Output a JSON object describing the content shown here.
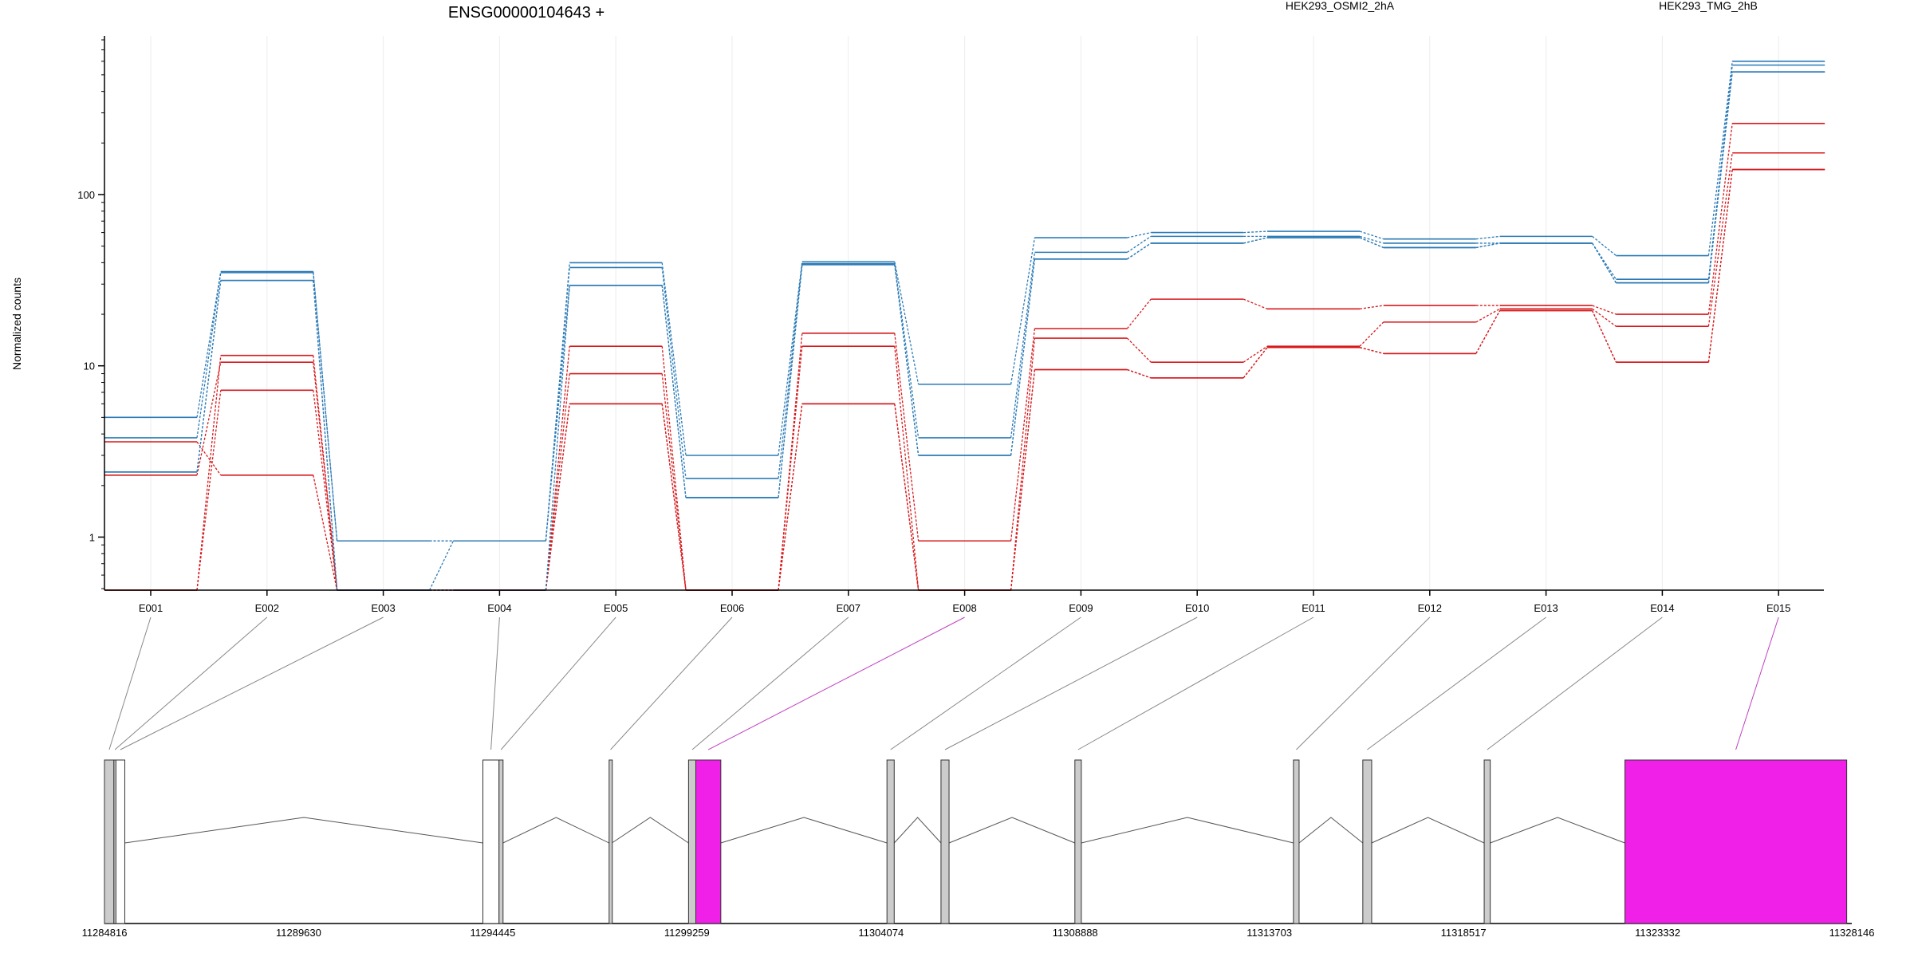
{
  "chart_data": {
    "type": "line",
    "title": "ENSG00000104643 +",
    "ylabel": "Normalized counts",
    "xlabel": "",
    "yscale": "log",
    "ylim": [
      0.49,
      800
    ],
    "yticks": [
      1,
      10,
      100
    ],
    "ytick_labels": [
      "1",
      "10",
      "100"
    ],
    "categories": [
      "E001",
      "E002",
      "E003",
      "E004",
      "E005",
      "E006",
      "E007",
      "E008",
      "E009",
      "E010",
      "E011",
      "E012",
      "E013",
      "E014",
      "E015"
    ],
    "legend": [
      {
        "label": "HEK293_OSMI2_2hA",
        "color": "#d7191c"
      },
      {
        "label": "HEK293_TMG_2hB",
        "color": "#2c7bb6"
      }
    ],
    "series": [
      {
        "group": 0,
        "color": "#d7191c",
        "values": [
          3.6,
          2.3,
          0.49,
          0.49,
          13,
          0.49,
          15.5,
          0.95,
          16.5,
          24.5,
          21.5,
          22.5,
          22.5,
          20,
          260
        ]
      },
      {
        "group": 0,
        "color": "#d7191c",
        "values": [
          2.3,
          10.5,
          0.49,
          0.49,
          9,
          0.49,
          13,
          0.49,
          14.5,
          10.5,
          13,
          18,
          21.5,
          17,
          175
        ]
      },
      {
        "group": 0,
        "color": "#d7191c",
        "values": [
          0.49,
          7.2,
          0.49,
          0.49,
          6,
          0.49,
          6,
          0.49,
          9.5,
          8.5,
          12.8,
          11.8,
          21,
          10.5,
          140
        ]
      },
      {
        "group": 0,
        "color": "#d7191c",
        "values": [
          0.49,
          11.5,
          0.49,
          0.49,
          6,
          0.49,
          6,
          0.49,
          9.5,
          8.5,
          12.8,
          11.8,
          21,
          10.5,
          140
        ]
      },
      {
        "group": 1,
        "color": "#2c7bb6",
        "values": [
          5.0,
          35.5,
          0.95,
          0.95,
          40,
          3.0,
          40.5,
          7.8,
          56,
          60,
          61,
          55,
          57,
          44,
          600
        ]
      },
      {
        "group": 1,
        "color": "#2c7bb6",
        "values": [
          3.8,
          35,
          0.95,
          0.95,
          37.5,
          2.2,
          39.5,
          3.8,
          46,
          57,
          57,
          52,
          52,
          32,
          570
        ]
      },
      {
        "group": 1,
        "color": "#2c7bb6",
        "values": [
          2.4,
          31.5,
          0.49,
          0.95,
          29.5,
          1.7,
          39,
          3.0,
          42,
          52,
          56,
          49,
          52,
          30.5,
          520
        ]
      },
      {
        "group": 1,
        "color": "#2c7bb6",
        "values": [
          2.4,
          31.5,
          0.49,
          0.49,
          29.5,
          1.7,
          39,
          3.0,
          42,
          52,
          56,
          49,
          52,
          30.5,
          520
        ]
      }
    ],
    "genome": {
      "range": [
        11284816,
        11328146
      ],
      "tick_labels": [
        "11284816",
        "11289630",
        "11294445",
        "11299259",
        "11304074",
        "11308888",
        "11313703",
        "11318517",
        "11323332",
        "11328146"
      ],
      "exon_features": [
        {
          "bin": "E001",
          "start": 11284816,
          "end": 11285050,
          "kind": "coding",
          "color": "#cccccc"
        },
        {
          "bin": "E002",
          "start": 11285050,
          "end": 11285100,
          "kind": "coding",
          "color": "#cccccc"
        },
        {
          "bin": "E003",
          "start": 11285100,
          "end": 11285320,
          "kind": "utr",
          "color": "#ffffff"
        },
        {
          "bin": "E004",
          "start": 11294200,
          "end": 11294600,
          "kind": "utr",
          "color": "#ffffff"
        },
        {
          "bin": "E005",
          "start": 11294600,
          "end": 11294700,
          "kind": "coding",
          "color": "#cccccc"
        },
        {
          "bin": "E006",
          "start": 11297330,
          "end": 11297400,
          "kind": "coding",
          "color": "#cccccc"
        },
        {
          "bin": "E007",
          "start": 11299300,
          "end": 11299480,
          "kind": "coding",
          "color": "#cccccc"
        },
        {
          "bin": "E008",
          "start": 11299480,
          "end": 11300100,
          "kind": "coding",
          "color": "#f020e8",
          "highlight": true
        },
        {
          "bin": "E009",
          "start": 11304220,
          "end": 11304400,
          "kind": "coding",
          "color": "#cccccc"
        },
        {
          "bin": "E010",
          "start": 11305560,
          "end": 11305760,
          "kind": "coding",
          "color": "#cccccc"
        },
        {
          "bin": "E011",
          "start": 11308880,
          "end": 11309040,
          "kind": "coding",
          "color": "#cccccc"
        },
        {
          "bin": "E012",
          "start": 11314300,
          "end": 11314440,
          "kind": "coding",
          "color": "#cccccc"
        },
        {
          "bin": "E013",
          "start": 11316020,
          "end": 11316240,
          "kind": "coding",
          "color": "#cccccc"
        },
        {
          "bin": "E014",
          "start": 11319030,
          "end": 11319180,
          "kind": "coding",
          "color": "#cccccc"
        },
        {
          "bin": "E015",
          "start": 11322520,
          "end": 11328020,
          "kind": "coding",
          "color": "#f020e8",
          "highlight": true
        }
      ]
    }
  }
}
